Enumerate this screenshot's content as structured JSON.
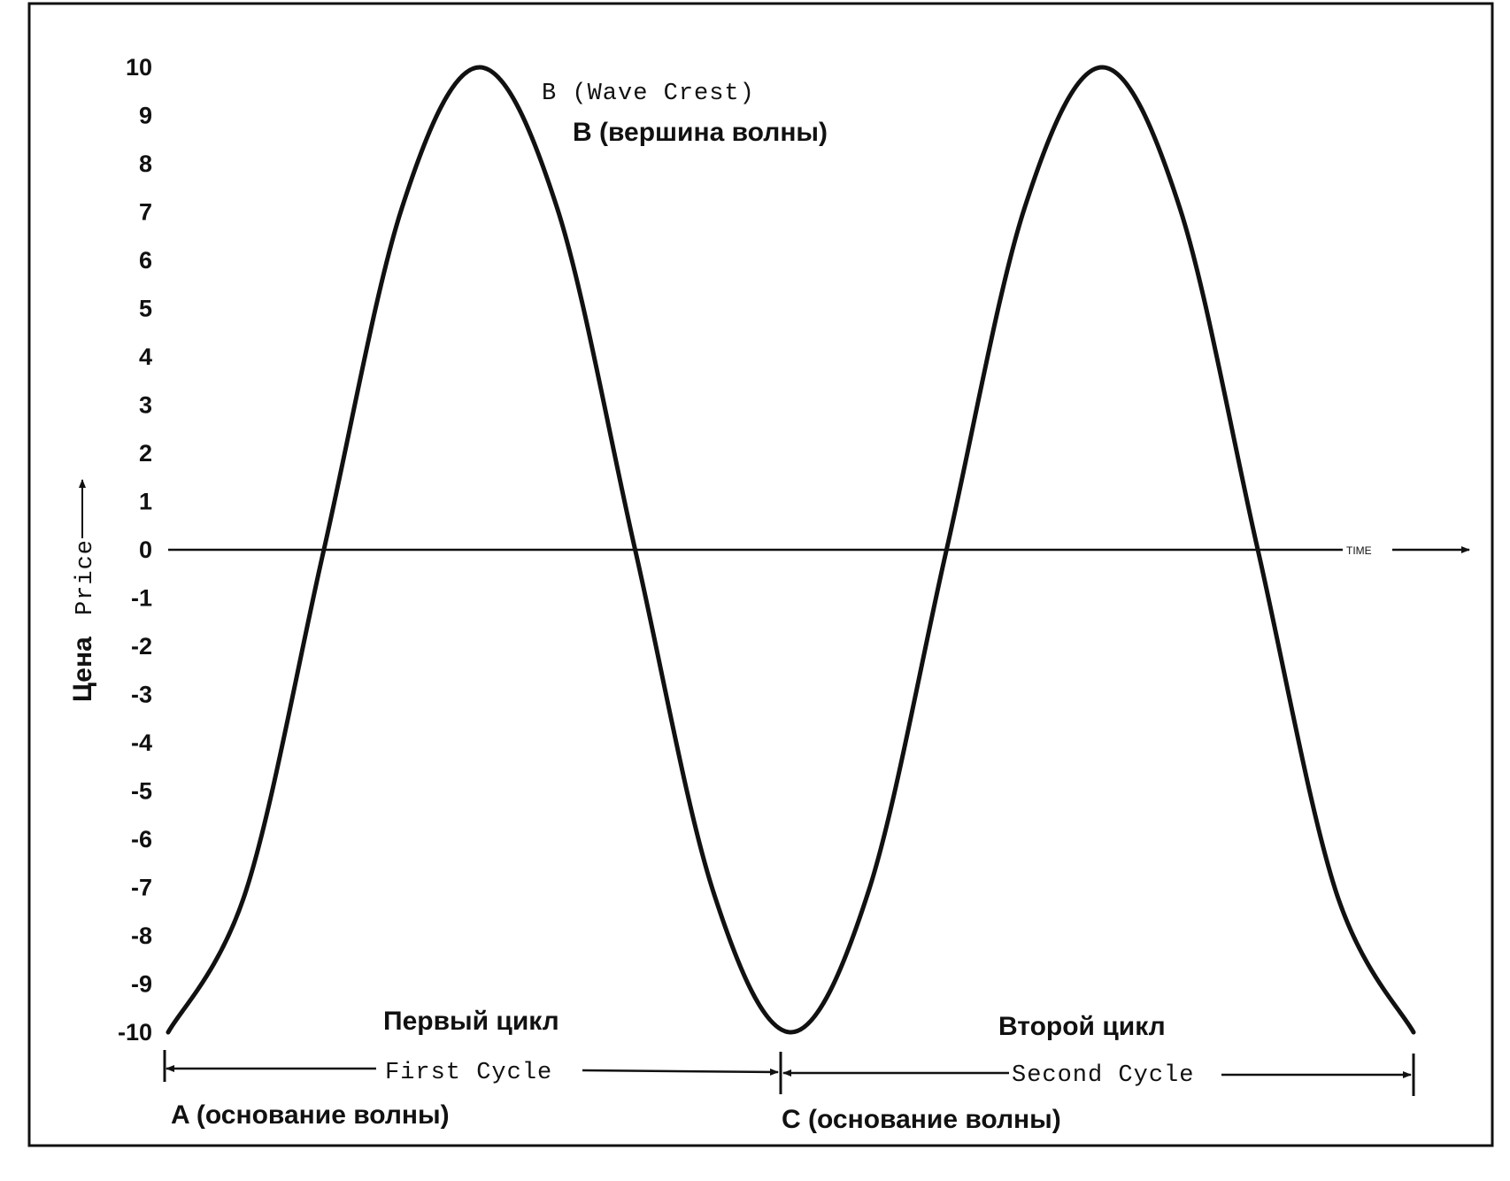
{
  "chart_data": {
    "type": "line",
    "y_ticks": [
      "10",
      "9",
      "8",
      "7",
      "6",
      "5",
      "4",
      "3",
      "2",
      "1",
      "0",
      "-1",
      "-2",
      "-3",
      "-4",
      "-5",
      "-6",
      "-7",
      "-8",
      "-9",
      "-10"
    ],
    "ylim": [
      -10,
      10
    ],
    "ylabel_ru": "Цена",
    "ylabel_en": "Price",
    "xlabel": "TIME",
    "series": [
      {
        "x": [
          0,
          0.25,
          0.5,
          0.75,
          1,
          1.25,
          1.5,
          1.75,
          2,
          2.25,
          2.5,
          2.75,
          3,
          3.25,
          3.5,
          3.75,
          4
        ],
        "y": [
          -10,
          -7.07,
          0,
          7.07,
          10,
          7.07,
          0,
          -7.07,
          -10,
          -7.07,
          0,
          7.07,
          10,
          7.07,
          0,
          -7.07,
          -10
        ]
      }
    ],
    "annotations": {
      "crest_en": "B (Wave Crest)",
      "crest_ru": "B (вершина волны)",
      "cycle1_ru": "Первый цикл",
      "cycle1_en": "First Cycle",
      "cycle2_ru": "Второй цикл",
      "cycle2_en": "Second Cycle",
      "trough_a": "A (основание волны)",
      "trough_c": "C (основание волны)"
    },
    "grid": false,
    "line_color": "#111111",
    "border_color": "#111111"
  }
}
